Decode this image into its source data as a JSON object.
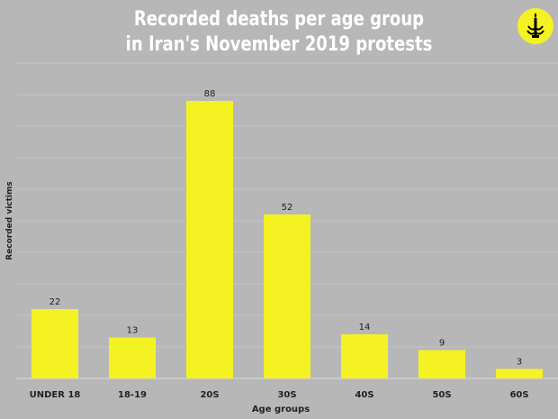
{
  "chart_data": {
    "type": "bar",
    "title": "Recorded deaths per age group",
    "subtitle": "in Iran's November 2019 protests",
    "xlabel": "Age groups",
    "ylabel": "Recorded victims",
    "categories": [
      "UNDER 18",
      "18-19",
      "20S",
      "30S",
      "40S",
      "50S",
      "60S"
    ],
    "values": [
      22,
      13,
      88,
      52,
      14,
      9,
      3
    ],
    "ylim": [
      0,
      100
    ],
    "grid": true,
    "bar_color": "#f5f223",
    "background_color": "#b7b7b7",
    "gridline_color": "#c6c6c6"
  },
  "logo": {
    "name": "candle-logo",
    "color": "#f5f223"
  }
}
